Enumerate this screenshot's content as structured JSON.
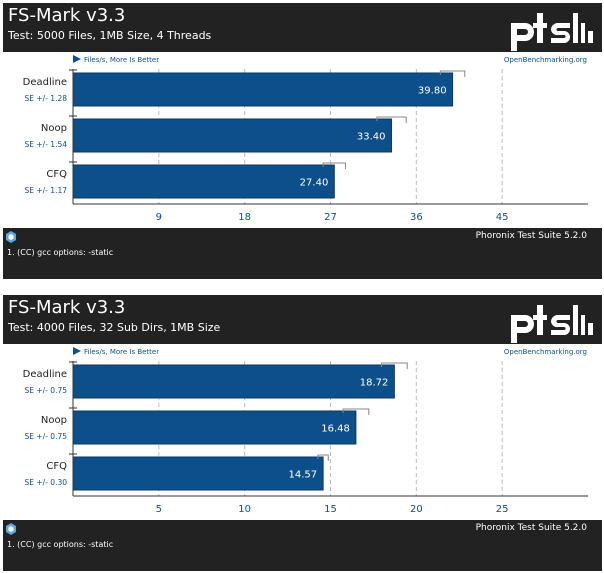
{
  "charts": [
    {
      "header": {
        "title": "FS-Mark v3.3",
        "subtitle": "Test: 5000 Files, 1MB Size, 4 Threads"
      },
      "legend_note": "Files/s, More Is Better",
      "source": "OpenBenchmarking.org",
      "footer_note": "1. (CC) gcc options: -static",
      "footer_brand": "Phoronix Test Suite 5.2.0",
      "chart_data": {
        "type": "bar",
        "orientation": "horizontal",
        "categories": [
          "Deadline",
          "Noop",
          "CFQ"
        ],
        "values": [
          39.8,
          33.4,
          27.4
        ],
        "value_labels": [
          "39.80",
          "33.40",
          "27.40"
        ],
        "errors": [
          "SE +/- 1.28",
          "SE +/- 1.54",
          "SE +/- 1.17"
        ],
        "error_values": [
          1.28,
          1.54,
          1.17
        ],
        "xticks": [
          "9",
          "18",
          "27",
          "36",
          "45"
        ],
        "xtick_values": [
          9,
          18,
          27,
          36,
          45
        ],
        "xlim": [
          0,
          54
        ],
        "grid": true,
        "bar_color": "#0d4f8b"
      }
    },
    {
      "header": {
        "title": "FS-Mark v3.3",
        "subtitle": "Test: 4000 Files, 32 Sub Dirs, 1MB Size"
      },
      "legend_note": "Files/s, More Is Better",
      "source": "OpenBenchmarking.org",
      "footer_note": "1. (CC) gcc options: -static",
      "footer_brand": "Phoronix Test Suite 5.2.0",
      "chart_data": {
        "type": "bar",
        "orientation": "horizontal",
        "categories": [
          "Deadline",
          "Noop",
          "CFQ"
        ],
        "values": [
          18.72,
          16.48,
          14.57
        ],
        "value_labels": [
          "18.72",
          "16.48",
          "14.57"
        ],
        "errors": [
          "SE +/- 0.75",
          "SE +/- 0.75",
          "SE +/- 0.30"
        ],
        "error_values": [
          0.75,
          0.75,
          0.3
        ],
        "xticks": [
          "5",
          "10",
          "15",
          "20",
          "25"
        ],
        "xtick_values": [
          5,
          10,
          15,
          20,
          25
        ],
        "xlim": [
          0,
          30
        ],
        "grid": true,
        "bar_color": "#0d4f8b"
      }
    }
  ]
}
